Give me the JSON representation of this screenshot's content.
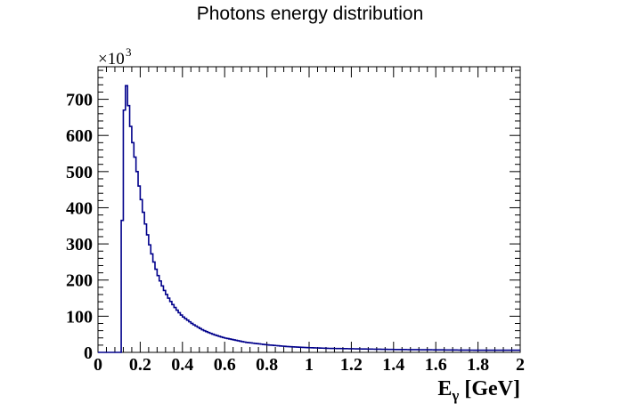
{
  "chart_data": {
    "type": "histogram",
    "title": "Photons energy distribution",
    "xlabel_main": "E",
    "xlabel_sub": "γ",
    "xlabel_unit": "[GeV]",
    "ylabel": "",
    "y_multiplier_base": "×10",
    "y_multiplier_exp": "3",
    "xlim": [
      0,
      2
    ],
    "ylim": [
      0,
      790
    ],
    "x_ticks": [
      0,
      0.2,
      0.4,
      0.6,
      0.8,
      1,
      1.2,
      1.4,
      1.6,
      1.8,
      2
    ],
    "x_tick_labels": [
      "0",
      "0.2",
      "0.4",
      "0.6",
      "0.8",
      "1",
      "1.2",
      "1.4",
      "1.6",
      "1.8",
      "2"
    ],
    "y_ticks": [
      0,
      100,
      200,
      300,
      400,
      500,
      600,
      700
    ],
    "y_tick_labels": [
      "0",
      "100",
      "200",
      "300",
      "400",
      "500",
      "600",
      "700"
    ],
    "line_color": "#00008b",
    "grid": false,
    "legend": "none",
    "series": [
      {
        "x": [
          0.11,
          0.12,
          0.13,
          0.14,
          0.15,
          0.16,
          0.17,
          0.18,
          0.19,
          0.2,
          0.22,
          0.24,
          0.26,
          0.28,
          0.3,
          0.32,
          0.34,
          0.36,
          0.38,
          0.4,
          0.45,
          0.5,
          0.55,
          0.6,
          0.7,
          0.8,
          0.9,
          1.0,
          1.1,
          1.2,
          1.4,
          1.6,
          1.8,
          2.0
        ],
        "y": [
          150,
          580,
          760,
          715,
          650,
          600,
          560,
          520,
          480,
          440,
          370,
          310,
          260,
          220,
          190,
          165,
          145,
          128,
          113,
          100,
          78,
          61,
          49,
          40,
          28,
          21,
          16,
          13,
          11,
          10,
          8,
          7,
          6,
          6
        ]
      }
    ]
  }
}
